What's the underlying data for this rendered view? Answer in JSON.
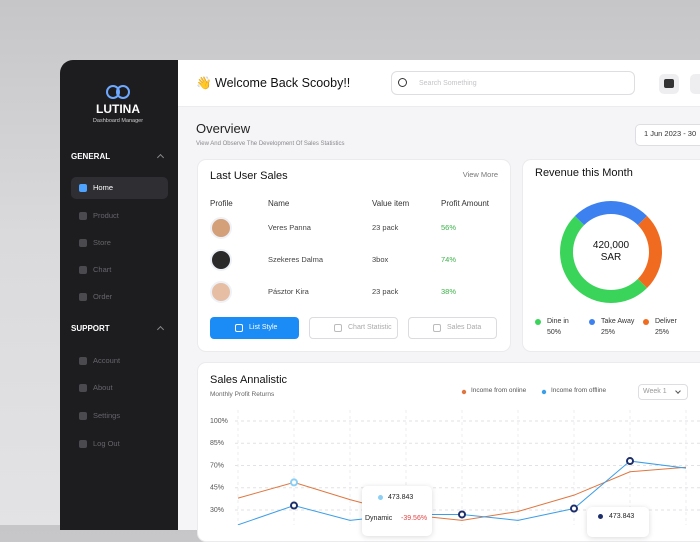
{
  "sidebar": {
    "brand": "LUTINA",
    "tagline": "Dashboard Manager",
    "sections": [
      {
        "title": "GENERAL",
        "items": [
          "Home",
          "Product",
          "Store",
          "Chart",
          "Order"
        ]
      },
      {
        "title": "SUPPORT",
        "items": [
          "Account",
          "About",
          "Settings",
          "Log Out"
        ]
      }
    ]
  },
  "header": {
    "greeting": "👋 Welcome Back Scooby!!",
    "search_placeholder": "Search Something"
  },
  "overview": {
    "title": "Overview",
    "subtitle": "View And Observe The Development Of Sales Statistics",
    "date_range": "1 Jun 2023 - 30"
  },
  "last_user_sales": {
    "title": "Last User Sales",
    "link": "View More",
    "columns": [
      "Profile",
      "Name",
      "Value item",
      "Profit Amount"
    ],
    "rows": [
      [
        "Veres Panna",
        "23 pack",
        "56%"
      ],
      [
        "Szekeres Dalma",
        "3box",
        "74%"
      ],
      [
        "Pásztor Kira",
        "23 pack",
        "38%"
      ]
    ],
    "buttons": [
      "List Style",
      "Chart Statistic",
      "Sales Data"
    ]
  },
  "revenue": {
    "title": "Revenue this Month",
    "chart_data": {
      "type": "pie",
      "center_value": "420,000",
      "center_unit": "SAR",
      "categories": [
        "Dine in",
        "Take Away",
        "Deliver"
      ],
      "values": [
        50,
        25,
        25
      ],
      "value_labels": [
        "50%",
        "25%",
        "25%"
      ],
      "colors": [
        "#3ad45a",
        "#3d80ef",
        "#f06b1f"
      ]
    }
  },
  "sales_analytics": {
    "title": "Sales Annalistic",
    "subtitle": "Monthly Profit Returns",
    "dropdown": "Week 1",
    "chart_data": {
      "type": "line",
      "yticks": [
        {
          "value": 100,
          "label": "100%"
        },
        {
          "value": 85,
          "label": "85%"
        },
        {
          "value": 70,
          "label": "70%"
        },
        {
          "value": 45,
          "label": "45%"
        },
        {
          "value": 30,
          "label": "30%"
        }
      ],
      "grid": true,
      "series": [
        {
          "name": "Income from online",
          "color": "#e0763f",
          "values": [
            38,
            51,
            37,
            27,
            23,
            29,
            40,
            63,
            68
          ]
        },
        {
          "name": "Income from offline",
          "color": "#3a9ee8",
          "values": [
            20,
            33,
            23,
            27,
            27,
            23,
            31,
            73,
            67
          ]
        }
      ]
    },
    "tooltips": [
      {
        "value": "473.843",
        "label": "Dynamic",
        "change": "-39.56%"
      },
      {
        "value": "473.843"
      }
    ]
  }
}
